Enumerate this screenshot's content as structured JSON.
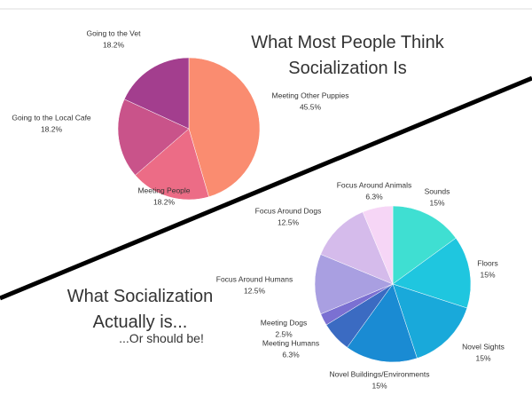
{
  "chart_data": [
    {
      "type": "pie",
      "title": "What Most People Think Socialization Is",
      "categories": [
        "Meeting Other Puppies",
        "Meeting People",
        "Going to the Local Cafe",
        "Going to the Vet"
      ],
      "values": [
        45.5,
        18.2,
        18.2,
        18.2
      ],
      "value_labels": [
        "45.5%",
        "18.2%",
        "18.2%",
        "18.2%"
      ],
      "colors": [
        "#fa8c70",
        "#ec6c86",
        "#c9538a",
        "#a33e8e"
      ]
    },
    {
      "type": "pie",
      "title": "What Socialization Actually is...",
      "subtitle": "...Or should be!",
      "categories": [
        "Sounds",
        "Floors",
        "Novel Sights",
        "Novel Buildings/Environments",
        "Meeting Humans",
        "Meeting Dogs",
        "Focus Around Humans",
        "Focus Around Dogs",
        "Focus Around Animals"
      ],
      "values": [
        15,
        15,
        15,
        15,
        6.3,
        2.5,
        12.5,
        12.5,
        6.3
      ],
      "value_labels": [
        "15%",
        "15%",
        "15%",
        "15%",
        "6.3%",
        "2.5%",
        "12.5%",
        "12.5%",
        "6.3%"
      ],
      "colors": [
        "#3fdfd2",
        "#1fc6df",
        "#19a9da",
        "#1a8bd3",
        "#3b6bc2",
        "#7b70d2",
        "#a99fe1",
        "#d5bbeb",
        "#f6d6f6"
      ]
    }
  ]
}
